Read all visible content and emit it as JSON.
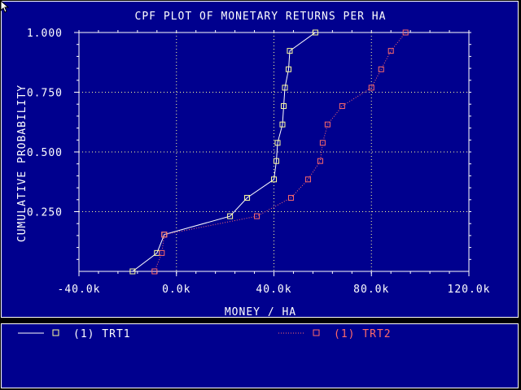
{
  "colors": {
    "background": "#00008e",
    "foreground": "#ffffff",
    "series1": "#ffff9a",
    "series2": "#ff6a6a",
    "grid": "#ffff9a"
  },
  "icons": {
    "cursor": "mouse-pointer-icon"
  },
  "chart_data": {
    "type": "line",
    "title": "CPF PLOT OF MONETARY RETURNS PER HA",
    "xlabel": "MONEY / HA",
    "ylabel": "CUMULATIVE PROBABILITY",
    "xlim": [
      -40000,
      120000
    ],
    "ylim": [
      0,
      1.0
    ],
    "x_ticks": [
      -40000,
      0,
      40000,
      80000,
      120000
    ],
    "x_tick_labels": [
      "-40.0k",
      "0.0k",
      "40.0k",
      "80.0k",
      "120.0k"
    ],
    "y_ticks": [
      0.25,
      0.5,
      0.75,
      1.0
    ],
    "y_tick_labels": [
      "0.250",
      "0.500",
      "0.750",
      "1.000"
    ],
    "grid": true,
    "legend": "below",
    "series": [
      {
        "name": "(1) TRT1",
        "line_style": "solid",
        "marker": "square",
        "x": [
          -18000,
          -8000,
          -5000,
          22000,
          29000,
          40000,
          41000,
          41500,
          43500,
          44000,
          44500,
          46000,
          46500,
          57000
        ],
        "y": [
          0.0,
          0.077,
          0.154,
          0.231,
          0.308,
          0.385,
          0.462,
          0.538,
          0.615,
          0.692,
          0.769,
          0.846,
          0.923,
          1.0
        ]
      },
      {
        "name": "(1) TRT2",
        "line_style": "dotted",
        "marker": "square",
        "x": [
          -9000,
          -6000,
          -5000,
          33000,
          47000,
          54000,
          59000,
          60000,
          62000,
          68000,
          80000,
          84000,
          88000,
          94000
        ],
        "y": [
          0.0,
          0.077,
          0.154,
          0.231,
          0.308,
          0.385,
          0.462,
          0.538,
          0.615,
          0.692,
          0.769,
          0.846,
          0.923,
          1.0
        ]
      }
    ]
  }
}
